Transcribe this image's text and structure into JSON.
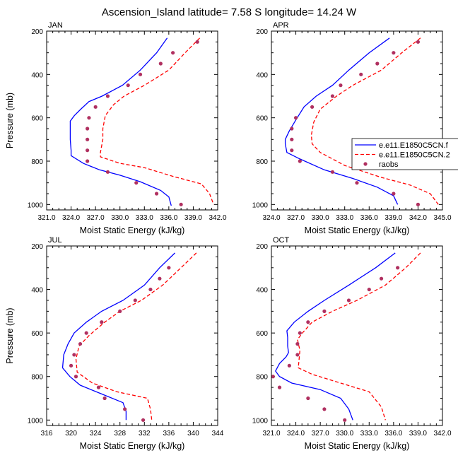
{
  "figure": {
    "title": "Ascension_Island  latitude= 7.58 S longitude= 14.24 W",
    "ylabel": "Pressure (mb)",
    "xlabel": "Moist Static Energy (kJ/kg)"
  },
  "colors": {
    "model1": "#0000ff",
    "model2": "#ff0000",
    "obs": "#b03060",
    "frame": "#000000"
  },
  "legend": {
    "entries": [
      {
        "name": "e.e11.E1850C5CN.f",
        "style": "solid",
        "color": "#0000ff"
      },
      {
        "name": "e.e11.E1850C5CN.2",
        "style": "dashed",
        "color": "#ff0000"
      },
      {
        "name": "raobs",
        "style": "marker",
        "color": "#b03060"
      }
    ]
  },
  "chart_data": [
    {
      "type": "line",
      "title": "JAN",
      "xlabel": "Moist Static Energy (kJ/kg)",
      "ylabel": "Pressure (mb)",
      "xlim": [
        321,
        342
      ],
      "ylim": [
        1025,
        200
      ],
      "y_reversed": true,
      "xticks": [
        321,
        324,
        327,
        330,
        333,
        336,
        339,
        342
      ],
      "xtick_labels": [
        "321.0",
        "324.0",
        "327.0",
        "330.0",
        "333.0",
        "336.0",
        "339.0",
        "342.0"
      ],
      "yticks": [
        200,
        400,
        600,
        800,
        1000
      ],
      "ytick_labels": [
        "200",
        "400",
        "600",
        "800",
        "1000"
      ],
      "series": [
        {
          "name": "e.e11.E1850C5CN.f",
          "style": "solid",
          "points": [
            [
              335.8,
              232
            ],
            [
              334.5,
              300
            ],
            [
              332.5,
              380
            ],
            [
              330.3,
              450
            ],
            [
              327.8,
              500
            ],
            [
              326.2,
              525
            ],
            [
              325.2,
              560
            ],
            [
              324.4,
              590
            ],
            [
              323.9,
              615
            ],
            [
              323.9,
              650
            ],
            [
              323.9,
              700
            ],
            [
              324,
              750
            ],
            [
              324,
              775
            ],
            [
              325.5,
              810
            ],
            [
              327.5,
              840
            ],
            [
              330,
              865
            ],
            [
              332.5,
              895
            ],
            [
              335,
              935
            ],
            [
              336,
              965
            ],
            [
              336.3,
              1005
            ]
          ]
        },
        {
          "name": "e.e11.E1850C5CN.2",
          "style": "dashed",
          "points": [
            [
              339.8,
              232
            ],
            [
              338,
              300
            ],
            [
              336,
              380
            ],
            [
              333,
              450
            ],
            [
              330.5,
              500
            ],
            [
              329.2,
              540
            ],
            [
              328.2,
              590
            ],
            [
              327.9,
              650
            ],
            [
              327.9,
              700
            ],
            [
              327.6,
              760
            ],
            [
              327.6,
              780
            ],
            [
              330,
              810
            ],
            [
              333,
              830
            ],
            [
              336.5,
              870
            ],
            [
              340,
              905
            ],
            [
              341,
              950
            ],
            [
              341.5,
              1000
            ]
          ]
        },
        {
          "name": "raobs",
          "style": "marker",
          "points": [
            [
              339.5,
              250
            ],
            [
              336.5,
              300
            ],
            [
              335,
              350
            ],
            [
              332.5,
              400
            ],
            [
              331,
              450
            ],
            [
              328.5,
              500
            ],
            [
              327,
              550
            ],
            [
              326.2,
              600
            ],
            [
              326,
              650
            ],
            [
              326,
              700
            ],
            [
              326,
              750
            ],
            [
              326,
              800
            ],
            [
              328.5,
              850
            ],
            [
              332,
              900
            ],
            [
              334.5,
              950
            ],
            [
              337.5,
              1000
            ]
          ]
        }
      ]
    },
    {
      "type": "line",
      "title": "APR",
      "xlabel": "Moist Static Energy (kJ/kg)",
      "ylabel": "Pressure (mb)",
      "xlim": [
        324,
        345
      ],
      "ylim": [
        1025,
        200
      ],
      "y_reversed": true,
      "xticks": [
        324,
        327,
        330,
        333,
        336,
        339,
        342,
        345
      ],
      "xtick_labels": [
        "324.0",
        "327.0",
        "330.0",
        "333.0",
        "336.0",
        "339.0",
        "342.0",
        "345.0"
      ],
      "yticks": [
        200,
        400,
        600,
        800,
        1000
      ],
      "ytick_labels": [
        "200",
        "400",
        "600",
        "800",
        "1000"
      ],
      "series": [
        {
          "name": "e.e11.E1850C5CN.f",
          "style": "solid",
          "points": [
            [
              338.5,
              232
            ],
            [
              336,
              300
            ],
            [
              333.5,
              380
            ],
            [
              331.5,
              450
            ],
            [
              329.5,
              500
            ],
            [
              328,
              550
            ],
            [
              327,
              610
            ],
            [
              326.2,
              660
            ],
            [
              325.7,
              700
            ],
            [
              325.7,
              720
            ],
            [
              325.9,
              760
            ],
            [
              327.5,
              790
            ],
            [
              330.5,
              840
            ],
            [
              334,
              880
            ],
            [
              337,
              920
            ],
            [
              339,
              960
            ],
            [
              339.5,
              1000
            ]
          ]
        },
        {
          "name": "e.e11.E1850C5CN.2",
          "style": "dashed",
          "points": [
            [
              342.3,
              232
            ],
            [
              340,
              300
            ],
            [
              337.5,
              380
            ],
            [
              334,
              450
            ],
            [
              332,
              500
            ],
            [
              330,
              560
            ],
            [
              329.2,
              620
            ],
            [
              328.9,
              680
            ],
            [
              329,
              720
            ],
            [
              330,
              760
            ],
            [
              333,
              820
            ],
            [
              337.5,
              875
            ],
            [
              341,
              910
            ],
            [
              343.5,
              950
            ],
            [
              344.5,
              1000
            ]
          ]
        },
        {
          "name": "raobs",
          "style": "marker",
          "points": [
            [
              342,
              250
            ],
            [
              339,
              300
            ],
            [
              337,
              350
            ],
            [
              335,
              400
            ],
            [
              332.5,
              450
            ],
            [
              331.5,
              500
            ],
            [
              329,
              550
            ],
            [
              327,
              600
            ],
            [
              326.5,
              650
            ],
            [
              326.5,
              700
            ],
            [
              326.5,
              750
            ],
            [
              327.5,
              800
            ],
            [
              331.5,
              850
            ],
            [
              334.5,
              900
            ],
            [
              339,
              950
            ],
            [
              342,
              1000
            ]
          ]
        }
      ]
    },
    {
      "type": "line",
      "title": "JUL",
      "xlabel": "Moist Static Energy (kJ/kg)",
      "ylabel": "Pressure (mb)",
      "xlim": [
        316,
        344
      ],
      "ylim": [
        1025,
        200
      ],
      "y_reversed": true,
      "xticks": [
        316,
        320,
        324,
        328,
        332,
        336,
        340,
        344
      ],
      "xtick_labels": [
        "316",
        "320",
        "324",
        "328",
        "332",
        "336",
        "340",
        "344"
      ],
      "yticks": [
        200,
        400,
        600,
        800,
        1000
      ],
      "ytick_labels": [
        "200",
        "400",
        "600",
        "800",
        "1000"
      ],
      "series": [
        {
          "name": "e.e11.E1850C5CN.f",
          "style": "solid",
          "points": [
            [
              337,
              232
            ],
            [
              334.5,
              300
            ],
            [
              332,
              380
            ],
            [
              328.5,
              450
            ],
            [
              325,
              500
            ],
            [
              322.5,
              550
            ],
            [
              320.5,
              600
            ],
            [
              319.5,
              650
            ],
            [
              318.8,
              700
            ],
            [
              318.6,
              760
            ],
            [
              319.8,
              800
            ],
            [
              321.5,
              840
            ],
            [
              325,
              880
            ],
            [
              328.5,
              920
            ],
            [
              329,
              960
            ],
            [
              329,
              1000
            ]
          ]
        },
        {
          "name": "e.e11.E1850C5CN.2",
          "style": "dashed",
          "points": [
            [
              340.5,
              232
            ],
            [
              338,
              300
            ],
            [
              335,
              380
            ],
            [
              331.5,
              450
            ],
            [
              328,
              500
            ],
            [
              325.5,
              550
            ],
            [
              323,
              610
            ],
            [
              321.3,
              660
            ],
            [
              320.8,
              720
            ],
            [
              321,
              780
            ],
            [
              323.5,
              830
            ],
            [
              327.5,
              870
            ],
            [
              332.5,
              900
            ],
            [
              333,
              950
            ],
            [
              333.2,
              1000
            ]
          ]
        },
        {
          "name": "raobs",
          "style": "marker",
          "points": [
            [
              336,
              300
            ],
            [
              334.5,
              350
            ],
            [
              333,
              400
            ],
            [
              330.5,
              450
            ],
            [
              328,
              500
            ],
            [
              325,
              550
            ],
            [
              322.5,
              600
            ],
            [
              321.5,
              650
            ],
            [
              320.5,
              700
            ],
            [
              320,
              750
            ],
            [
              320.8,
              800
            ],
            [
              324.5,
              850
            ],
            [
              325.5,
              900
            ],
            [
              328.8,
              950
            ],
            [
              331.8,
              1000
            ]
          ]
        }
      ]
    },
    {
      "type": "line",
      "title": "OCT",
      "xlabel": "Moist Static Energy (kJ/kg)",
      "ylabel": "Pressure (mb)",
      "xlim": [
        321,
        342
      ],
      "ylim": [
        1025,
        200
      ],
      "y_reversed": true,
      "xticks": [
        321,
        324,
        327,
        330,
        333,
        336,
        339,
        342
      ],
      "xtick_labels": [
        "321.0",
        "324.0",
        "327.0",
        "330.0",
        "333.0",
        "336.0",
        "339.0",
        "342.0"
      ],
      "yticks": [
        200,
        400,
        600,
        800,
        1000
      ],
      "ytick_labels": [
        "200",
        "400",
        "600",
        "800",
        "1000"
      ],
      "series": [
        {
          "name": "e.e11.E1850C5CN.f",
          "style": "solid",
          "points": [
            [
              336.2,
              232
            ],
            [
              333.8,
              300
            ],
            [
              330.5,
              380
            ],
            [
              327.5,
              450
            ],
            [
              325.5,
              500
            ],
            [
              323.8,
              550
            ],
            [
              322.9,
              590
            ],
            [
              323,
              620
            ],
            [
              323,
              660
            ],
            [
              323.1,
              690
            ],
            [
              322.8,
              710
            ],
            [
              322,
              740
            ],
            [
              321.5,
              775
            ],
            [
              322,
              800
            ],
            [
              323.5,
              830
            ],
            [
              327,
              860
            ],
            [
              329.5,
              900
            ],
            [
              330.5,
              950
            ],
            [
              331,
              1000
            ]
          ]
        },
        {
          "name": "e.e11.E1850C5CN.2",
          "style": "dashed",
          "points": [
            [
              339.3,
              232
            ],
            [
              337.5,
              300
            ],
            [
              335,
              380
            ],
            [
              331.5,
              450
            ],
            [
              328.5,
              500
            ],
            [
              326,
              550
            ],
            [
              324.8,
              600
            ],
            [
              324.2,
              630
            ],
            [
              324.5,
              680
            ],
            [
              324.4,
              720
            ],
            [
              324.3,
              760
            ],
            [
              326,
              790
            ],
            [
              329.5,
              830
            ],
            [
              333,
              870
            ],
            [
              334.5,
              940
            ],
            [
              335,
              1000
            ]
          ]
        },
        {
          "name": "raobs",
          "style": "marker",
          "points": [
            [
              336.5,
              300
            ],
            [
              334.5,
              350
            ],
            [
              333,
              400
            ],
            [
              330.5,
              450
            ],
            [
              327.5,
              500
            ],
            [
              325.5,
              550
            ],
            [
              324.5,
              600
            ],
            [
              324.2,
              650
            ],
            [
              324.2,
              700
            ],
            [
              323.2,
              750
            ],
            [
              321.2,
              800
            ],
            [
              322,
              850
            ],
            [
              325.5,
              900
            ],
            [
              327.5,
              950
            ],
            [
              330,
              1000
            ]
          ]
        }
      ]
    }
  ]
}
